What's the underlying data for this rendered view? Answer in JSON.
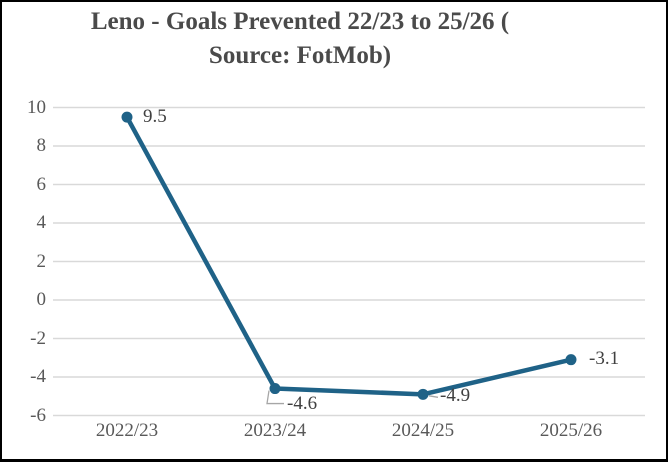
{
  "chart_data": {
    "type": "line",
    "title": "Leno - Goals Prevented 22/23 to 25/26 ( Source: FotMob)",
    "title_lines": [
      "Leno - Goals Prevented 22/23 to 25/26 (",
      "Source: FotMob)"
    ],
    "categories": [
      "2022/23",
      "2023/24",
      "2024/25",
      "2025/26"
    ],
    "series": [
      {
        "name": "Goals Prevented",
        "values": [
          9.5,
          -4.6,
          -4.9,
          -3.1
        ]
      }
    ],
    "data_labels": [
      "9.5",
      "-4.6",
      "-4.9",
      "-3.1"
    ],
    "yticks": [
      10,
      8,
      6,
      4,
      2,
      0,
      -2,
      -4,
      -6
    ],
    "ylim": [
      -6,
      10
    ],
    "xlabel": "",
    "ylabel": "",
    "grid": "horizontal",
    "legend": "none",
    "colors": {
      "line": "#1F6287",
      "marker": "#1F6287",
      "gridline": "#D9D9D9",
      "axis_text": "#595959",
      "data_label_text": "#404040",
      "title_text": "#4A4A4A",
      "leader_line": "#A6A6A6",
      "background": "#FFFFFF",
      "border": "#000000"
    }
  }
}
